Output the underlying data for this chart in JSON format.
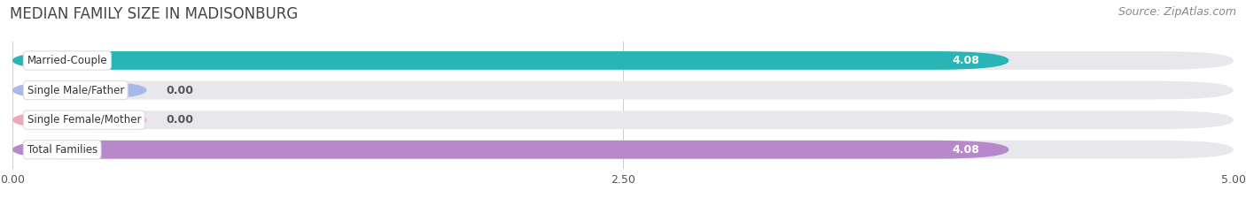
{
  "title": "MEDIAN FAMILY SIZE IN MADISONBURG",
  "source": "Source: ZipAtlas.com",
  "categories": [
    "Married-Couple",
    "Single Male/Father",
    "Single Female/Mother",
    "Total Families"
  ],
  "values": [
    4.08,
    0.0,
    0.0,
    4.08
  ],
  "bar_colors": [
    "#29b5b5",
    "#a8b8e8",
    "#f0a8b8",
    "#b888cc"
  ],
  "bar_bg_color": "#e8e8ec",
  "label_box_color": "#ffffff",
  "xlim": [
    0,
    5.0
  ],
  "xticks": [
    0.0,
    2.5,
    5.0
  ],
  "xtick_labels": [
    "0.00",
    "2.50",
    "5.00"
  ],
  "title_fontsize": 12,
  "source_fontsize": 9,
  "bar_height": 0.62,
  "bar_gap": 1.0,
  "fig_width": 14.06,
  "fig_height": 2.33,
  "dpi": 100,
  "bg_color": "#ffffff"
}
